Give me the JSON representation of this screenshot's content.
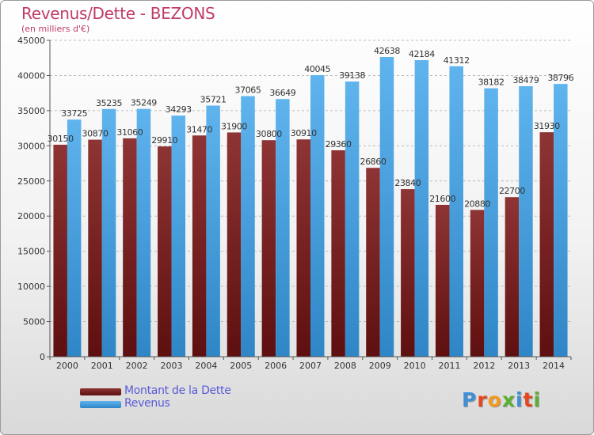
{
  "header": {
    "title": "Revenus/Dette - BEZONS",
    "subtitle": "(en milliers d'€)"
  },
  "logo": {
    "text": "Proxiti",
    "letter_colors": [
      "#3f8fd6",
      "#e6461f",
      "#f29a1f",
      "#5bb033",
      "#3f8fd6",
      "#e6461f",
      "#5bb033"
    ]
  },
  "colors": {
    "dette": "#7a1e1e",
    "revenus": "#3d9ee0",
    "grid": "#bbbbbb",
    "axis": "#555555"
  },
  "chart_data": {
    "type": "bar",
    "title": "Revenus/Dette - BEZONS",
    "subtitle": "(en milliers d'€)",
    "categories": [
      "2000",
      "2001",
      "2002",
      "2003",
      "2004",
      "2005",
      "2006",
      "2007",
      "2008",
      "2009",
      "2010",
      "2011",
      "2012",
      "2013",
      "2014"
    ],
    "series": [
      {
        "name": "Montant de la Dette",
        "values": [
          30150,
          30870,
          31060,
          29910,
          31470,
          31900,
          30800,
          30910,
          29360,
          26860,
          23840,
          21600,
          20880,
          22700,
          31930
        ],
        "labels": [
          "30150",
          "30870",
          "31060",
          "29910",
          "31470",
          "31900",
          "30800",
          "30910",
          "29360",
          "26860",
          "23840",
          "21600",
          "20880",
          "22700",
          "31930"
        ]
      },
      {
        "name": "Revenus",
        "values": [
          33725,
          35235,
          35249,
          34293,
          35721,
          37065,
          36649,
          40045,
          39138,
          42638,
          42184,
          41312,
          38182,
          38479,
          38796
        ],
        "labels": [
          "33725",
          "35235",
          "35249",
          "34293",
          "35721",
          "37065",
          "36649",
          "40045",
          "39138",
          "42638",
          "42184",
          "41312",
          "38182",
          "38479",
          "38796"
        ]
      }
    ],
    "ylim": [
      0,
      45000
    ],
    "yticks": [
      "0",
      "5000",
      "10000",
      "15000",
      "20000",
      "25000",
      "30000",
      "35000",
      "40000",
      "45000"
    ],
    "grid": true,
    "legend_position": "bottom-left"
  }
}
